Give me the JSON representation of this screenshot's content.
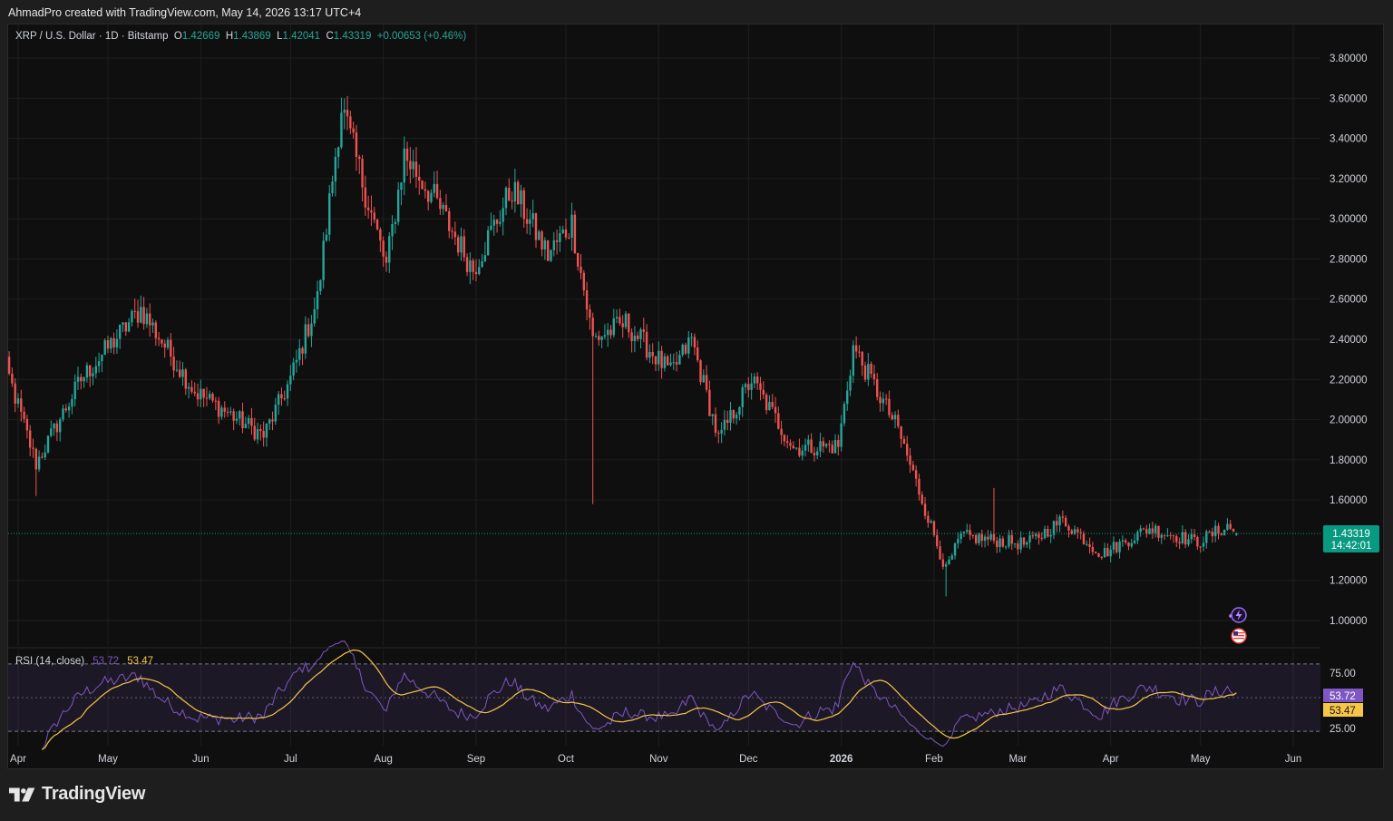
{
  "header": {
    "credit": "AhmadPro created with TradingView.com, May 14, 2026 13:17 UTC+4"
  },
  "legend": {
    "symbol": "XRP / U.S. Dollar · 1D · Bitstamp",
    "o_label": "O",
    "o_value": "1.42669",
    "h_label": "H",
    "h_value": "1.43869",
    "l_label": "L",
    "l_value": "1.42041",
    "c_label": "C",
    "c_value": "1.43319",
    "change": "+0.00653 (+0.46%)"
  },
  "price_badge": {
    "price": "1.43319",
    "countdown": "14:42:01",
    "color": "#089981"
  },
  "rsi": {
    "label": "RSI (14, close)",
    "value": "53.72",
    "ma_value": "53.47",
    "upper_band": "75.00",
    "lower_band": "25.00",
    "rsi_color": "#7e57c2",
    "ma_color": "#f7c548"
  },
  "brand": {
    "name": "TradingView"
  },
  "icons": {
    "events": "lightning-event-icon",
    "flag": "us-flag-icon"
  },
  "colors": {
    "up": "#26a69a",
    "down": "#ef5350",
    "grid": "#1f1f1f"
  },
  "chart_data": {
    "type": "candlestick",
    "title": "XRP / U.S. Dollar · 1D · Bitstamp",
    "y_ticks": [
      "3.80000",
      "3.60000",
      "3.40000",
      "3.20000",
      "3.00000",
      "2.80000",
      "2.60000",
      "2.40000",
      "2.20000",
      "2.00000",
      "1.80000",
      "1.60000",
      "1.20000",
      "1.00000"
    ],
    "ylim": [
      0.9,
      3.9
    ],
    "x_ticks": [
      {
        "label": "Apr",
        "date": "2025-04-01"
      },
      {
        "label": "May",
        "date": "2025-05-01"
      },
      {
        "label": "Jun",
        "date": "2025-06-01"
      },
      {
        "label": "Jul",
        "date": "2025-07-01"
      },
      {
        "label": "Aug",
        "date": "2025-08-01"
      },
      {
        "label": "Sep",
        "date": "2025-09-01"
      },
      {
        "label": "Oct",
        "date": "2025-10-01"
      },
      {
        "label": "Nov",
        "date": "2025-11-01"
      },
      {
        "label": "Dec",
        "date": "2025-12-01"
      },
      {
        "label": "2026",
        "date": "2026-01-01",
        "bold": true
      },
      {
        "label": "Feb",
        "date": "2026-02-01"
      },
      {
        "label": "Mar",
        "date": "2026-03-01"
      },
      {
        "label": "Apr",
        "date": "2026-04-01"
      },
      {
        "label": "May",
        "date": "2026-05-01"
      },
      {
        "label": "Jun",
        "date": "2026-06-01"
      }
    ],
    "close_anchors": [
      {
        "date": "2025-03-25",
        "close": 2.4
      },
      {
        "date": "2025-04-07",
        "close": 1.78
      },
      {
        "date": "2025-04-22",
        "close": 2.2
      },
      {
        "date": "2025-05-12",
        "close": 2.55
      },
      {
        "date": "2025-05-30",
        "close": 2.14
      },
      {
        "date": "2025-06-22",
        "close": 1.92
      },
      {
        "date": "2025-07-01",
        "close": 2.2
      },
      {
        "date": "2025-07-10",
        "close": 2.6
      },
      {
        "date": "2025-07-18",
        "close": 3.56
      },
      {
        "date": "2025-08-02",
        "close": 2.76
      },
      {
        "date": "2025-08-08",
        "close": 3.32
      },
      {
        "date": "2025-08-18",
        "close": 3.1
      },
      {
        "date": "2025-08-31",
        "close": 2.75
      },
      {
        "date": "2025-09-13",
        "close": 3.15
      },
      {
        "date": "2025-09-25",
        "close": 2.82
      },
      {
        "date": "2025-10-03",
        "close": 2.98
      },
      {
        "date": "2025-10-10",
        "close": 2.4
      },
      {
        "date": "2025-10-21",
        "close": 2.48
      },
      {
        "date": "2025-11-05",
        "close": 2.23
      },
      {
        "date": "2025-11-12",
        "close": 2.4
      },
      {
        "date": "2025-11-21",
        "close": 1.9
      },
      {
        "date": "2025-12-02",
        "close": 2.2
      },
      {
        "date": "2025-12-16",
        "close": 1.86
      },
      {
        "date": "2025-12-31",
        "close": 1.87
      },
      {
        "date": "2026-01-05",
        "close": 2.36
      },
      {
        "date": "2026-01-20",
        "close": 1.95
      },
      {
        "date": "2026-02-05",
        "close": 1.25
      },
      {
        "date": "2026-02-10",
        "close": 1.42
      },
      {
        "date": "2026-03-04",
        "close": 1.38
      },
      {
        "date": "2026-03-16",
        "close": 1.5
      },
      {
        "date": "2026-03-29",
        "close": 1.33
      },
      {
        "date": "2026-04-14",
        "close": 1.46
      },
      {
        "date": "2026-04-30",
        "close": 1.39
      },
      {
        "date": "2026-05-10",
        "close": 1.47
      },
      {
        "date": "2026-05-13",
        "close": 1.43319
      }
    ],
    "last": {
      "open": 1.42669,
      "high": 1.43869,
      "low": 1.42041,
      "close": 1.43319
    },
    "rsi_series": {
      "name": "RSI (14, close)",
      "last": 53.72,
      "band_upper": 75,
      "band_lower": 25,
      "ylim": [
        17,
        83
      ]
    },
    "rsi_ma_series": {
      "last": 53.47
    },
    "grid": true,
    "legend_position": "top-left"
  }
}
